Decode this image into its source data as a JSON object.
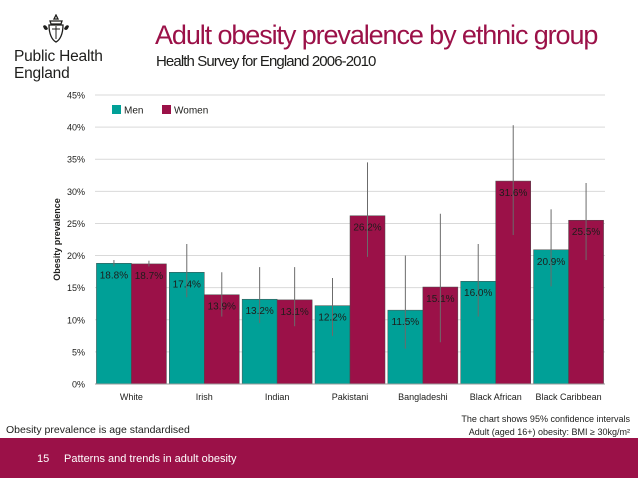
{
  "org": {
    "line1": "Public Health",
    "line2": "England"
  },
  "title": "Adult obesity prevalence by ethnic group",
  "subtitle": "Health Survey for England 2006-2010",
  "chart_data": {
    "type": "bar",
    "ylabel": "Obesity prevalence",
    "ylim": [
      0,
      45
    ],
    "yticks": [
      "0%",
      "5%",
      "10%",
      "15%",
      "20%",
      "25%",
      "30%",
      "35%",
      "40%",
      "45%"
    ],
    "ytick_values": [
      0,
      5,
      10,
      15,
      20,
      25,
      30,
      35,
      40,
      45
    ],
    "grid": true,
    "legend_position": "top-left",
    "categories": [
      "White",
      "Irish",
      "Indian",
      "Pakistani",
      "Bangladeshi",
      "Black African",
      "Black Caribbean"
    ],
    "series": [
      {
        "name": "Men",
        "color": "#00a097",
        "values": [
          18.8,
          17.4,
          13.2,
          12.2,
          11.5,
          16.0,
          20.9
        ],
        "labels": [
          "18.8%",
          "17.4%",
          "13.2%",
          "12.2%",
          "11.5%",
          "16.0%",
          "20.9%"
        ],
        "ci_low": [
          18.3,
          13.5,
          9.5,
          7.5,
          5.5,
          10.5,
          15.2
        ],
        "ci_high": [
          19.3,
          21.8,
          18.2,
          16.5,
          20.0,
          21.8,
          27.2
        ]
      },
      {
        "name": "Women",
        "color": "#9b1148",
        "values": [
          18.7,
          13.9,
          13.1,
          26.2,
          15.1,
          31.6,
          25.5
        ],
        "labels": [
          "18.7%",
          "13.9%",
          "13.1%",
          "26.2%",
          "15.1%",
          "31.6%",
          "25.5%"
        ],
        "ci_low": [
          18.3,
          10.5,
          9.0,
          19.8,
          6.5,
          23.2,
          19.3
        ],
        "ci_high": [
          19.2,
          17.4,
          18.2,
          34.5,
          26.5,
          40.3,
          31.3
        ]
      }
    ]
  },
  "notes": {
    "left": "Obesity prevalence is age standardised",
    "right_line1": "The chart shows 95% confidence intervals",
    "right_line2": "Adult (aged 16+) obesity: BMI ≥ 30kg/m²"
  },
  "footer": {
    "page": "15",
    "text": "Patterns and trends in adult obesity"
  },
  "colors": {
    "brand": "#9b1148",
    "teal": "#00a097",
    "grid": "#d9d9d9"
  }
}
